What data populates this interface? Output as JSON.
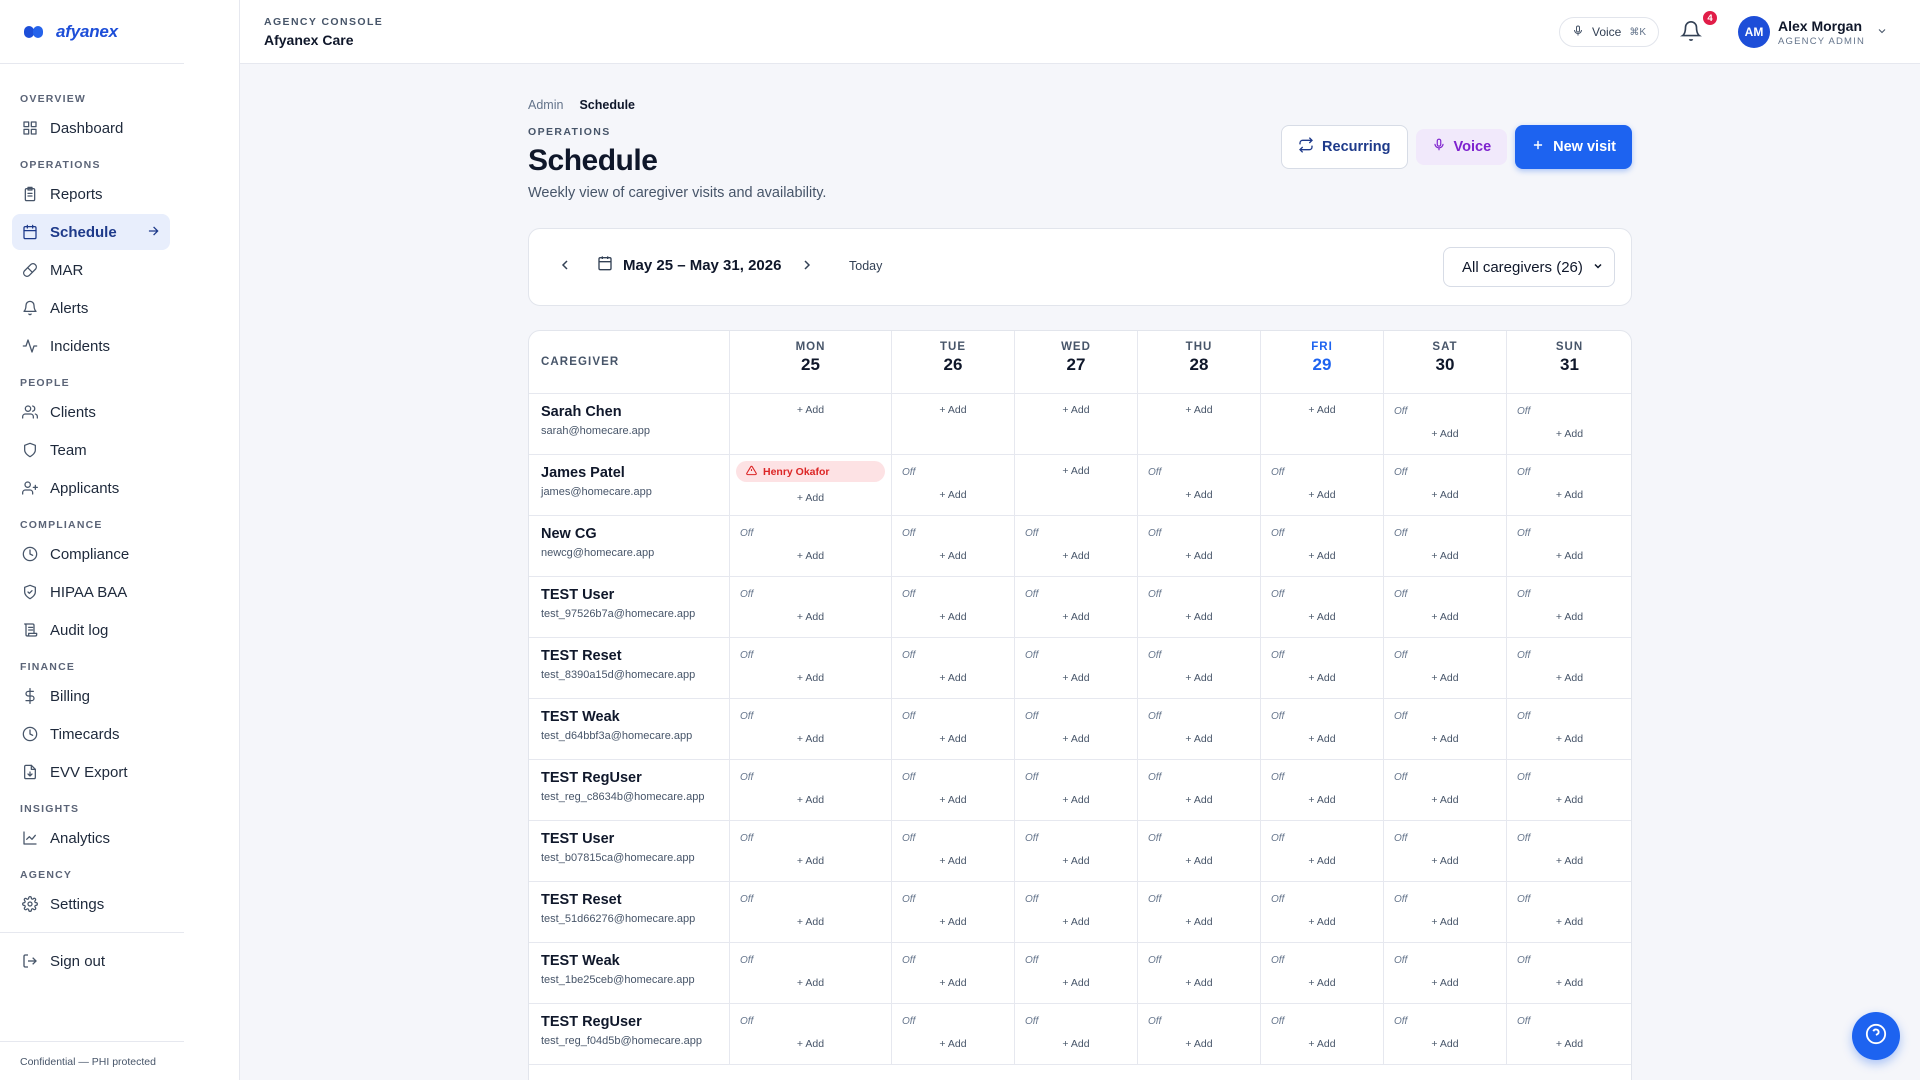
{
  "brand": {
    "name": "afyanex"
  },
  "sidebar": {
    "sections": [
      {
        "title": "OVERVIEW",
        "items": [
          {
            "label": "Dashboard",
            "icon": "grid-icon"
          }
        ]
      },
      {
        "title": "OPERATIONS",
        "items": [
          {
            "label": "Reports",
            "icon": "clipboard-icon"
          },
          {
            "label": "Schedule",
            "icon": "calendar-icon",
            "active": true
          },
          {
            "label": "MAR",
            "icon": "pill-icon"
          },
          {
            "label": "Alerts",
            "icon": "bell-icon"
          },
          {
            "label": "Incidents",
            "icon": "activity-icon"
          }
        ]
      },
      {
        "title": "PEOPLE",
        "items": [
          {
            "label": "Clients",
            "icon": "users-icon"
          },
          {
            "label": "Team",
            "icon": "shield-icon"
          },
          {
            "label": "Applicants",
            "icon": "user-plus-icon"
          }
        ]
      },
      {
        "title": "COMPLIANCE",
        "items": [
          {
            "label": "Compliance",
            "icon": "clock-icon"
          },
          {
            "label": "HIPAA BAA",
            "icon": "shield-check-icon"
          },
          {
            "label": "Audit log",
            "icon": "scroll-icon"
          }
        ]
      },
      {
        "title": "FINANCE",
        "items": [
          {
            "label": "Billing",
            "icon": "dollar-icon"
          },
          {
            "label": "Timecards",
            "icon": "clock-icon"
          },
          {
            "label": "EVV Export",
            "icon": "file-export-icon"
          }
        ]
      },
      {
        "title": "INSIGHTS",
        "items": [
          {
            "label": "Analytics",
            "icon": "chart-line-icon"
          }
        ]
      },
      {
        "title": "AGENCY",
        "items": [
          {
            "label": "Settings",
            "icon": "gear-icon"
          }
        ]
      }
    ],
    "sign_out": "Sign out",
    "confidential": "Confidential — PHI protected"
  },
  "topbar": {
    "console_label": "AGENCY CONSOLE",
    "console_name": "Afyanex Care",
    "voice_label": "Voice",
    "voice_shortcut": "⌘K",
    "notifications_count": "4",
    "user_initials": "AM",
    "user_name": "Alex Morgan",
    "user_role": "AGENCY ADMIN"
  },
  "page": {
    "breadcrumb": [
      "Admin",
      "Schedule"
    ],
    "eyebrow": "OPERATIONS",
    "title": "Schedule",
    "subtitle": "Weekly view of caregiver visits and availability.",
    "actions": {
      "recurring": "Recurring",
      "voice": "Voice",
      "new_visit": "New visit"
    }
  },
  "toolbar": {
    "range": "May 25 – May 31, 2026",
    "today": "Today",
    "filter": "All caregivers (26)"
  },
  "grid": {
    "caregiver_header": "CAREGIVER",
    "days": [
      {
        "name": "MON",
        "num": "25"
      },
      {
        "name": "TUE",
        "num": "26"
      },
      {
        "name": "WED",
        "num": "27"
      },
      {
        "name": "THU",
        "num": "28"
      },
      {
        "name": "FRI",
        "num": "29",
        "today": true
      },
      {
        "name": "SAT",
        "num": "30"
      },
      {
        "name": "SUN",
        "num": "31"
      }
    ],
    "off_label": "Off",
    "add_label": "+ Add",
    "rows": [
      {
        "name": "Sarah Chen",
        "email": "sarah@homecare.app",
        "cells": [
          "add",
          "add",
          "add",
          "add",
          "add",
          "off",
          "off"
        ]
      },
      {
        "name": "James Patel",
        "email": "james@homecare.app",
        "cells": [
          "visit",
          "off",
          "add",
          "off",
          "off",
          "off",
          "off"
        ],
        "visit": "Henry Okafor"
      },
      {
        "name": "New CG",
        "email": "newcg@homecare.app",
        "cells": [
          "off",
          "off",
          "off",
          "off",
          "off",
          "off",
          "off"
        ]
      },
      {
        "name": "TEST User",
        "email": "test_97526b7a@homecare.app",
        "cells": [
          "off",
          "off",
          "off",
          "off",
          "off",
          "off",
          "off"
        ]
      },
      {
        "name": "TEST Reset",
        "email": "test_8390a15d@homecare.app",
        "cells": [
          "off",
          "off",
          "off",
          "off",
          "off",
          "off",
          "off"
        ]
      },
      {
        "name": "TEST Weak",
        "email": "test_d64bbf3a@homecare.app",
        "cells": [
          "off",
          "off",
          "off",
          "off",
          "off",
          "off",
          "off"
        ]
      },
      {
        "name": "TEST RegUser",
        "email": "test_reg_c8634b@homecare.app",
        "cells": [
          "off",
          "off",
          "off",
          "off",
          "off",
          "off",
          "off"
        ]
      },
      {
        "name": "TEST User",
        "email": "test_b07815ca@homecare.app",
        "cells": [
          "off",
          "off",
          "off",
          "off",
          "off",
          "off",
          "off"
        ]
      },
      {
        "name": "TEST Reset",
        "email": "test_51d66276@homecare.app",
        "cells": [
          "off",
          "off",
          "off",
          "off",
          "off",
          "off",
          "off"
        ]
      },
      {
        "name": "TEST Weak",
        "email": "test_1be25ceb@homecare.app",
        "cells": [
          "off",
          "off",
          "off",
          "off",
          "off",
          "off",
          "off"
        ]
      },
      {
        "name": "TEST RegUser",
        "email": "test_reg_f04d5b@homecare.app",
        "cells": [
          "off",
          "off",
          "off",
          "off",
          "off",
          "off",
          "off"
        ]
      }
    ]
  }
}
